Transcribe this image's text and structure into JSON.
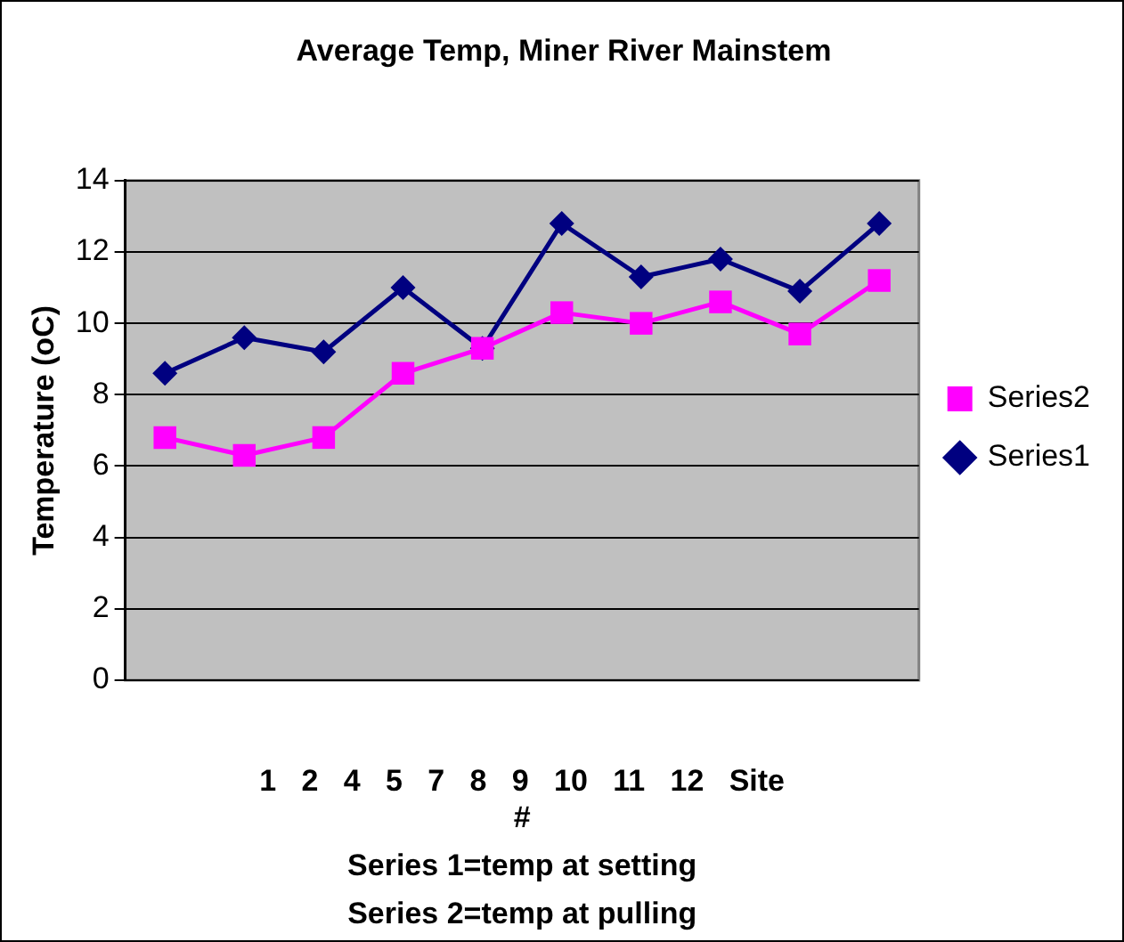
{
  "chart_data": {
    "type": "line",
    "title": "Average Temp, Miner River Mainstem",
    "ylabel": "Temperature (oC)",
    "xlabel": "1 2 4 5 7 8 9 10 11 12 Site #",
    "categories": [
      null,
      null,
      null,
      null,
      null,
      null,
      null,
      null,
      null,
      null
    ],
    "series": [
      {
        "name": "Series1",
        "color": "#000080",
        "marker": "diamond",
        "values": [
          8.6,
          9.6,
          9.2,
          11.0,
          9.3,
          12.8,
          11.3,
          11.8,
          10.9,
          12.8
        ]
      },
      {
        "name": "Series2",
        "color": "#ff00ff",
        "marker": "square",
        "values": [
          6.8,
          6.3,
          6.8,
          8.6,
          9.3,
          10.3,
          10.0,
          10.6,
          9.7,
          11.2
        ]
      }
    ],
    "ylim": [
      0,
      14
    ],
    "yticks": [
      0,
      2,
      4,
      6,
      8,
      10,
      12,
      14
    ],
    "grid": "y",
    "legend": "right",
    "annotations": [
      "Series 1=temp at setting",
      "Series 2=temp at pulling"
    ]
  }
}
